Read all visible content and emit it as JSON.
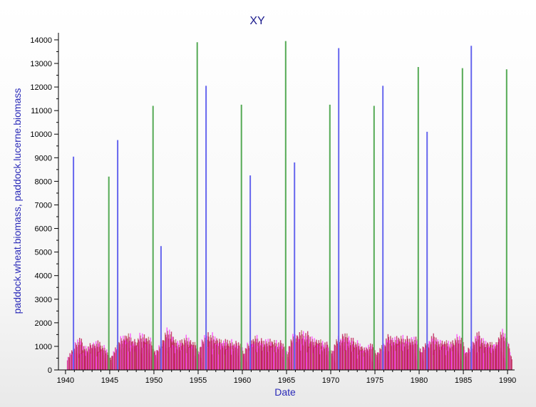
{
  "chart_data": {
    "type": "bar",
    "title": "XY",
    "xlabel": "Date",
    "ylabel": "paddock.wheat.biomass, paddock.lucerne.biomass",
    "xlim": [
      1939.2,
      1990.8
    ],
    "ylim": [
      0,
      14300
    ],
    "x_ticks": [
      1940,
      1945,
      1950,
      1955,
      1960,
      1965,
      1970,
      1975,
      1980,
      1985,
      1990
    ],
    "y_ticks": [
      0,
      1000,
      2000,
      3000,
      4000,
      5000,
      6000,
      7000,
      8000,
      9000,
      10000,
      11000,
      12000,
      13000,
      14000
    ],
    "grid": false,
    "legend": "none",
    "colors": {
      "wheat_peaks_blue": "#6666ee",
      "wheat_peaks_green": "#55aa55",
      "lucerne_magenta": "#ff40ff",
      "lucerne_crimson": "#c0205a",
      "lucerne_brown": "#b87060",
      "axis": "#000000"
    },
    "series": [
      {
        "color": "#6666ee",
        "style": "spike",
        "points": [
          {
            "x": 1940.9,
            "y": 9050
          },
          {
            "x": 1945.9,
            "y": 9750
          },
          {
            "x": 1950.8,
            "y": 5250
          },
          {
            "x": 1955.9,
            "y": 12050
          },
          {
            "x": 1960.9,
            "y": 8250
          },
          {
            "x": 1965.9,
            "y": 8800
          },
          {
            "x": 1970.9,
            "y": 13650
          },
          {
            "x": 1975.9,
            "y": 12050
          },
          {
            "x": 1980.9,
            "y": 10100
          },
          {
            "x": 1985.9,
            "y": 13750
          }
        ]
      },
      {
        "color": "#55aa55",
        "style": "spike",
        "points": [
          {
            "x": 1944.9,
            "y": 8200
          },
          {
            "x": 1949.9,
            "y": 11200
          },
          {
            "x": 1954.9,
            "y": 13900
          },
          {
            "x": 1959.9,
            "y": 11250
          },
          {
            "x": 1964.9,
            "y": 13950
          },
          {
            "x": 1969.9,
            "y": 11250
          },
          {
            "x": 1974.9,
            "y": 11200
          },
          {
            "x": 1979.9,
            "y": 12850
          },
          {
            "x": 1984.9,
            "y": 12800
          },
          {
            "x": 1989.9,
            "y": 12750
          }
        ]
      },
      {
        "color": "#ff40ff",
        "style": "cluster",
        "points": [
          {
            "x": 1941.1,
            "y": 900
          },
          {
            "x": 1941.7,
            "y": 1450
          },
          {
            "x": 1942.4,
            "y": 1050
          },
          {
            "x": 1943.1,
            "y": 1200
          },
          {
            "x": 1943.7,
            "y": 1350
          },
          {
            "x": 1944.4,
            "y": 1100
          },
          {
            "x": 1946.1,
            "y": 1100
          },
          {
            "x": 1946.7,
            "y": 1600
          },
          {
            "x": 1947.3,
            "y": 1650
          },
          {
            "x": 1948.0,
            "y": 1350
          },
          {
            "x": 1948.8,
            "y": 1700
          },
          {
            "x": 1949.5,
            "y": 1500
          },
          {
            "x": 1951.1,
            "y": 1300
          },
          {
            "x": 1951.8,
            "y": 1900
          },
          {
            "x": 1952.5,
            "y": 1400
          },
          {
            "x": 1953.2,
            "y": 1350
          },
          {
            "x": 1953.9,
            "y": 1550
          },
          {
            "x": 1954.6,
            "y": 1300
          },
          {
            "x": 1956.1,
            "y": 1700
          },
          {
            "x": 1956.8,
            "y": 1650
          },
          {
            "x": 1957.5,
            "y": 1450
          },
          {
            "x": 1958.2,
            "y": 1400
          },
          {
            "x": 1958.9,
            "y": 1350
          },
          {
            "x": 1959.6,
            "y": 1300
          },
          {
            "x": 1961.1,
            "y": 1350
          },
          {
            "x": 1961.7,
            "y": 1550
          },
          {
            "x": 1962.4,
            "y": 1400
          },
          {
            "x": 1963.1,
            "y": 1450
          },
          {
            "x": 1963.8,
            "y": 1350
          },
          {
            "x": 1964.5,
            "y": 1300
          },
          {
            "x": 1966.1,
            "y": 1650
          },
          {
            "x": 1966.8,
            "y": 1800
          },
          {
            "x": 1967.5,
            "y": 1700
          },
          {
            "x": 1968.2,
            "y": 1500
          },
          {
            "x": 1968.9,
            "y": 1400
          },
          {
            "x": 1969.6,
            "y": 1250
          },
          {
            "x": 1971.1,
            "y": 1500
          },
          {
            "x": 1971.8,
            "y": 1700
          },
          {
            "x": 1972.5,
            "y": 1450
          },
          {
            "x": 1973.2,
            "y": 1300
          },
          {
            "x": 1973.9,
            "y": 1050
          },
          {
            "x": 1974.6,
            "y": 1200
          },
          {
            "x": 1976.1,
            "y": 1150
          },
          {
            "x": 1976.8,
            "y": 1600
          },
          {
            "x": 1977.5,
            "y": 1550
          },
          {
            "x": 1978.2,
            "y": 1550
          },
          {
            "x": 1978.9,
            "y": 1500
          },
          {
            "x": 1979.6,
            "y": 1550
          },
          {
            "x": 1981.1,
            "y": 1300
          },
          {
            "x": 1981.8,
            "y": 1600
          },
          {
            "x": 1982.5,
            "y": 1400
          },
          {
            "x": 1983.2,
            "y": 1350
          },
          {
            "x": 1983.9,
            "y": 1300
          },
          {
            "x": 1984.6,
            "y": 1600
          },
          {
            "x": 1986.1,
            "y": 1100
          },
          {
            "x": 1986.8,
            "y": 1700
          },
          {
            "x": 1987.5,
            "y": 1400
          },
          {
            "x": 1988.2,
            "y": 1300
          },
          {
            "x": 1988.9,
            "y": 1250
          },
          {
            "x": 1989.6,
            "y": 1800
          }
        ]
      }
    ]
  }
}
